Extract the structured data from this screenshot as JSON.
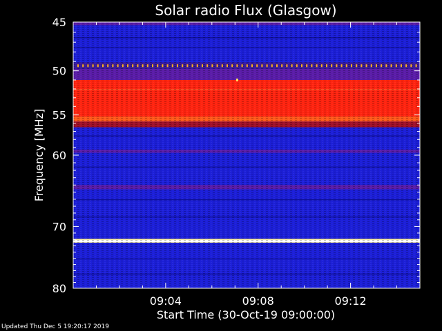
{
  "chart_data": {
    "type": "heatmap",
    "title": "Solar radio Flux (Glasgow)",
    "xlabel": "Start Time (30-Oct-19 09:00:00)",
    "ylabel": "Frequency [MHz]",
    "x_ticks": [
      "09:04",
      "09:08",
      "09:12"
    ],
    "x_tick_minutes": [
      4,
      8,
      12
    ],
    "xlim_minutes": [
      0,
      15
    ],
    "y_ticks": [
      45,
      50,
      55,
      60,
      70,
      80
    ],
    "ylim": [
      45,
      80
    ],
    "y_scale": "log",
    "colormap": "blue-purple-red-yellow-white",
    "bands": [
      {
        "freq_from": 45.0,
        "freq_to": 45.3,
        "level": "purple"
      },
      {
        "freq_from": 45.3,
        "freq_to": 49.1,
        "level": "blue"
      },
      {
        "freq_from": 49.1,
        "freq_to": 49.8,
        "level": "dotted-yellow"
      },
      {
        "freq_from": 49.8,
        "freq_to": 51.0,
        "level": "purple"
      },
      {
        "freq_from": 51.0,
        "freq_to": 55.2,
        "level": "red"
      },
      {
        "freq_from": 55.2,
        "freq_to": 55.8,
        "level": "orange-red"
      },
      {
        "freq_from": 55.8,
        "freq_to": 56.5,
        "level": "dark-red"
      },
      {
        "freq_from": 56.5,
        "freq_to": 59.3,
        "level": "blue"
      },
      {
        "freq_from": 59.3,
        "freq_to": 59.7,
        "level": "purple"
      },
      {
        "freq_from": 59.7,
        "freq_to": 64.0,
        "level": "blue"
      },
      {
        "freq_from": 64.0,
        "freq_to": 64.6,
        "level": "purple"
      },
      {
        "freq_from": 64.6,
        "freq_to": 71.9,
        "level": "blue"
      },
      {
        "freq_from": 71.9,
        "freq_to": 72.5,
        "level": "yellow-white"
      },
      {
        "freq_from": 72.5,
        "freq_to": 80.0,
        "level": "blue"
      }
    ]
  },
  "footer": {
    "updated": "Updated Thu Dec  5 19:20:17 2019"
  }
}
